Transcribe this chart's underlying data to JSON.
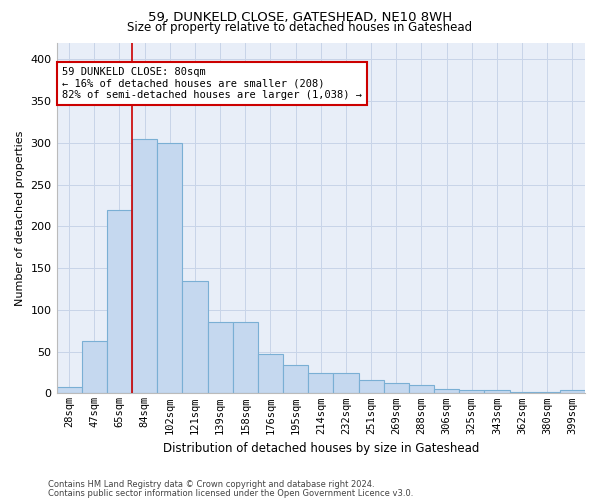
{
  "title1": "59, DUNKELD CLOSE, GATESHEAD, NE10 8WH",
  "title2": "Size of property relative to detached houses in Gateshead",
  "xlabel": "Distribution of detached houses by size in Gateshead",
  "ylabel": "Number of detached properties",
  "categories": [
    "28sqm",
    "47sqm",
    "65sqm",
    "84sqm",
    "102sqm",
    "121sqm",
    "139sqm",
    "158sqm",
    "176sqm",
    "195sqm",
    "214sqm",
    "232sqm",
    "251sqm",
    "269sqm",
    "288sqm",
    "306sqm",
    "325sqm",
    "343sqm",
    "362sqm",
    "380sqm",
    "399sqm"
  ],
  "values": [
    8,
    63,
    220,
    305,
    300,
    135,
    85,
    85,
    47,
    34,
    24,
    24,
    16,
    13,
    10,
    5,
    4,
    4,
    2,
    2,
    4
  ],
  "bar_color": "#c5d8ef",
  "bar_edge_color": "#7aafd4",
  "bar_linewidth": 0.8,
  "grid_color": "#c8d4e8",
  "bg_color": "#e8eef8",
  "annotation_text": "59 DUNKELD CLOSE: 80sqm\n← 16% of detached houses are smaller (208)\n82% of semi-detached houses are larger (1,038) →",
  "annotation_box_color": "#ffffff",
  "annotation_box_edge": "#cc0000",
  "red_line_x": 2.5,
  "ylim": [
    0,
    420
  ],
  "yticks": [
    0,
    50,
    100,
    150,
    200,
    250,
    300,
    350,
    400
  ],
  "footer1": "Contains HM Land Registry data © Crown copyright and database right 2024.",
  "footer2": "Contains public sector information licensed under the Open Government Licence v3.0."
}
